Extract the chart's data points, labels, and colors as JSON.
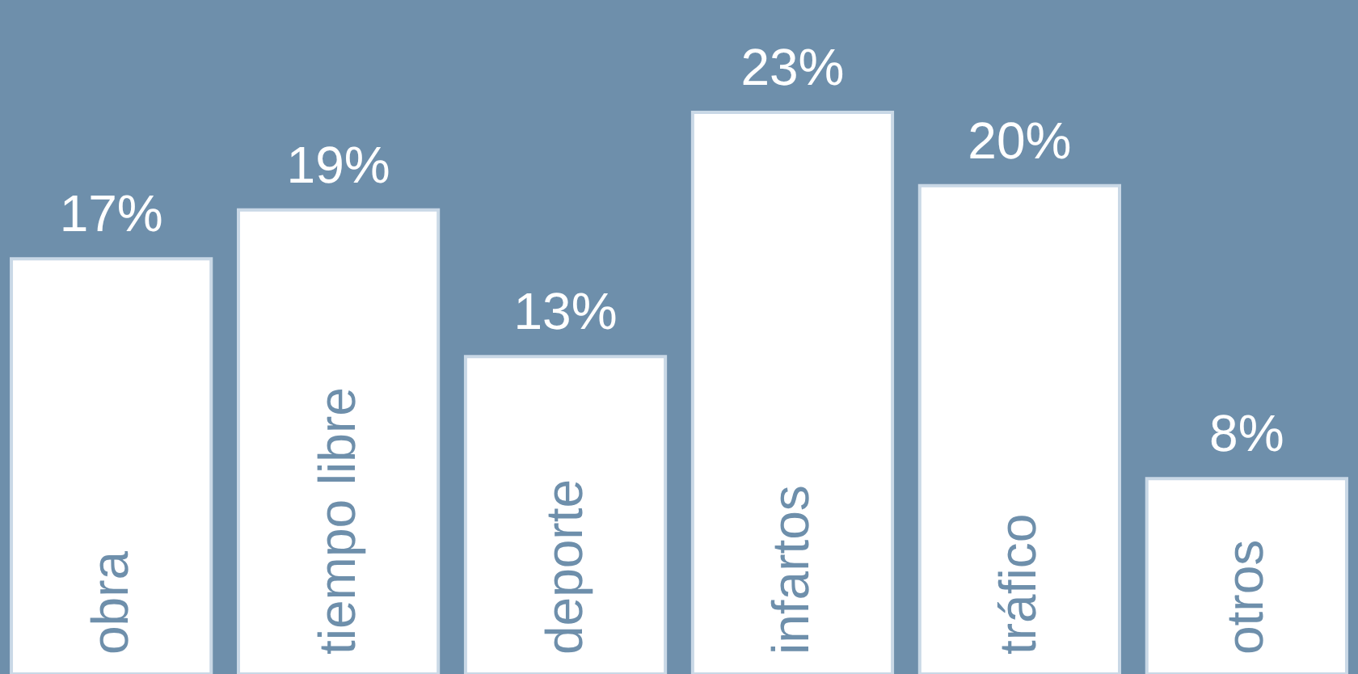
{
  "chart_data": {
    "type": "bar",
    "categories": [
      "obra",
      "tiempo libre",
      "deporte",
      "infartos",
      "tráfico",
      "otros"
    ],
    "values": [
      17,
      19,
      13,
      23,
      20,
      8
    ],
    "value_labels": [
      "17%",
      "19%",
      "13%",
      "23%",
      "20%",
      "8%"
    ],
    "color": "#ffffff",
    "tick_labels": false
  }
}
